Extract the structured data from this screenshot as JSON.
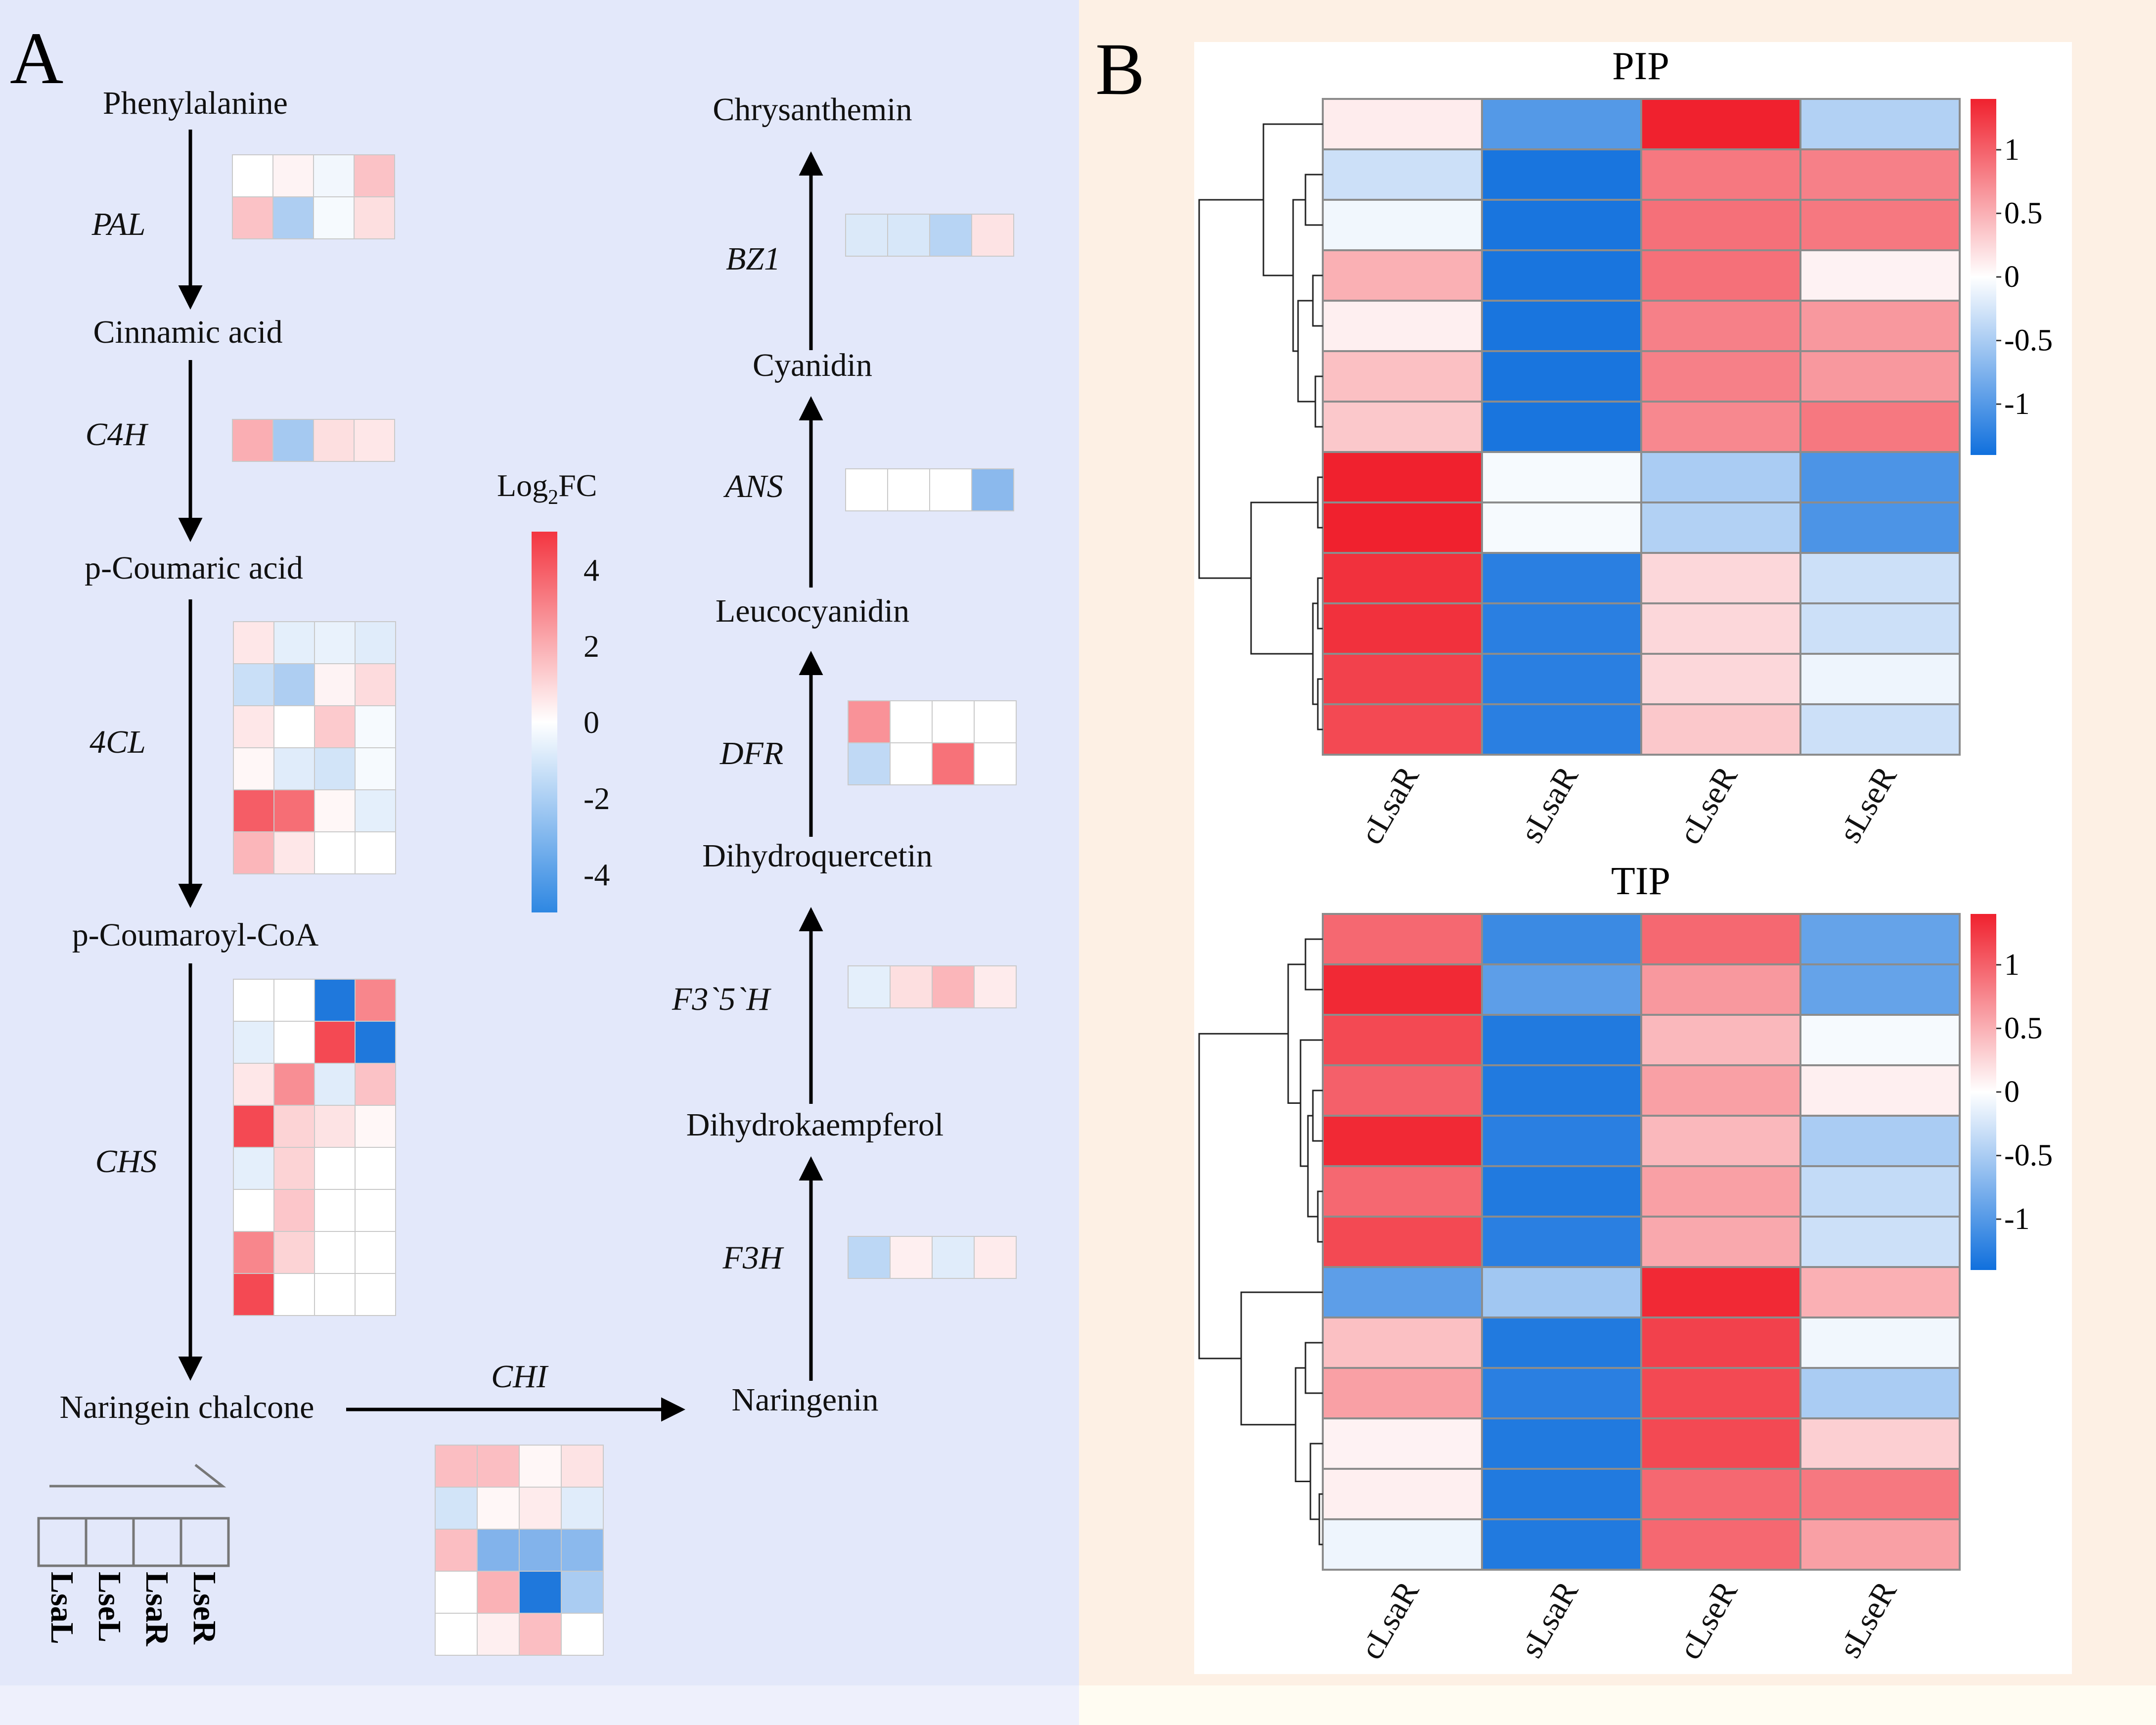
{
  "panels": {
    "a_letter": "A",
    "b_letter": "B"
  },
  "colors": {
    "panel_a_bg": "#E3E8FA",
    "panel_b_bg": "#FDF0E4",
    "high": "#F0212E",
    "mid": "#FFFFFF",
    "low": "#1070DD"
  },
  "pathway": {
    "compounds": {
      "phenylalanine": "Phenylalanine",
      "cinnamic_acid": "Cinnamic acid",
      "p_coumaric_acid": "p-Coumaric acid",
      "p_coumaroyl_coa": "p-Coumaroyl-CoA",
      "naringenin_chalcone": "Naringein chalcone",
      "naringenin": "Naringenin",
      "dihydrokaempferol": "Dihydrokaempferol",
      "dihydroquercetin": "Dihydroquercetin",
      "leucocyanidin": "Leucocyanidin",
      "cyanidin": "Cyanidin",
      "chrysanthemin": "Chrysanthemin"
    },
    "enzymes": {
      "PAL": "PAL",
      "C4H": "C4H",
      "fourCL": "4CL",
      "CHS": "CHS",
      "CHI": "CHI",
      "F3H": "F3H",
      "F35H": "F3`5`H",
      "DFR": "DFR",
      "ANS": "ANS",
      "BZ1": "BZ1"
    },
    "legend_columns": [
      "LsaL",
      "LseL",
      "LsaR",
      "LseR"
    ],
    "colorbar": {
      "title_main": "Log",
      "title_sub": "2",
      "title_tail": "FC",
      "ticks": [
        4,
        2,
        0,
        -2,
        -4
      ],
      "tick_labels": [
        "4",
        "2",
        "0",
        "-2",
        "-4"
      ],
      "range": [
        -5,
        5
      ]
    },
    "enzyme_values": {
      "PAL": [
        [
          0,
          0.3,
          -0.3,
          1.5
        ],
        [
          1.5,
          -1.8,
          -0.2,
          0.8
        ]
      ],
      "C4H": [
        [
          2,
          -2,
          0.8,
          0.6
        ]
      ],
      "fourCL": [
        [
          0.6,
          -0.6,
          -0.5,
          -0.7
        ],
        [
          -1.2,
          -1.8,
          0.3,
          0.9
        ],
        [
          0.6,
          0,
          1.3,
          -0.2
        ],
        [
          0.2,
          -0.7,
          -1.0,
          -0.2
        ],
        [
          4,
          3.6,
          0.2,
          -0.6
        ],
        [
          1.8,
          0.6,
          0,
          0
        ]
      ],
      "CHS": [
        [
          0,
          0,
          -5,
          3
        ],
        [
          -0.6,
          0,
          4.5,
          -5
        ],
        [
          0.6,
          2.8,
          -0.7,
          1.5
        ],
        [
          4.5,
          1.1,
          0.7,
          0.2
        ],
        [
          -0.6,
          1.1,
          0,
          0
        ],
        [
          0,
          1.4,
          0,
          0
        ],
        [
          3,
          1.1,
          0,
          0
        ],
        [
          4.5,
          0,
          0,
          0
        ]
      ],
      "CHI": [
        [
          1.6,
          1.6,
          0.2,
          0.7
        ],
        [
          -1,
          0.2,
          0.5,
          -0.7
        ],
        [
          1.6,
          -2.8,
          -2.8,
          -2.6
        ],
        [
          0,
          1.9,
          -5,
          -1.9
        ],
        [
          0,
          0.4,
          1.6,
          0
        ]
      ],
      "F3H": [
        [
          -1.5,
          0.4,
          -0.7,
          0.5
        ]
      ],
      "F35H": [
        [
          -0.6,
          0.8,
          1.8,
          0.5
        ]
      ],
      "DFR": [
        [
          2.7,
          0,
          0,
          0
        ],
        [
          -1.4,
          0,
          3.5,
          0
        ]
      ],
      "ANS": [
        [
          0,
          0,
          0,
          -2.6
        ]
      ],
      "BZ1": [
        [
          -0.8,
          -0.9,
          -1.6,
          0.7
        ]
      ]
    }
  },
  "heatmaps": [
    {
      "title": "PIP",
      "columns": [
        "cLsaR",
        "sLsaR",
        "cLseR",
        "sLseR"
      ],
      "colorbar": {
        "ticks": [
          1,
          0.5,
          0,
          -0.5,
          -1
        ],
        "tick_labels": [
          "1",
          "0.5",
          "0",
          "-0.5",
          "-1"
        ],
        "range": [
          -1.4,
          1.4
        ]
      },
      "values": [
        [
          0.12,
          -1.0,
          1.4,
          -0.45
        ],
        [
          -0.3,
          -1.35,
          0.85,
          0.8
        ],
        [
          -0.08,
          -1.35,
          0.9,
          0.85
        ],
        [
          0.5,
          -1.35,
          0.9,
          0.08
        ],
        [
          0.1,
          -1.35,
          0.8,
          0.65
        ],
        [
          0.4,
          -1.35,
          0.8,
          0.65
        ],
        [
          0.35,
          -1.35,
          0.75,
          0.85
        ],
        [
          1.4,
          -0.05,
          -0.5,
          -1.05
        ],
        [
          1.4,
          -0.05,
          -0.45,
          -1.05
        ],
        [
          1.3,
          -1.25,
          0.25,
          -0.3
        ],
        [
          1.3,
          -1.25,
          0.25,
          -0.3
        ],
        [
          1.2,
          -1.25,
          0.25,
          -0.1
        ],
        [
          1.15,
          -1.25,
          0.35,
          -0.3
        ]
      ]
    },
    {
      "title": "TIP",
      "columns": [
        "cLsaR",
        "sLsaR",
        "cLseR",
        "sLseR"
      ],
      "colorbar": {
        "ticks": [
          1,
          0.5,
          0,
          -0.5,
          -1
        ],
        "tick_labels": [
          "1",
          "0.5",
          "0",
          "-0.5",
          "-1"
        ],
        "range": [
          -1.4,
          1.4
        ]
      },
      "values": [
        [
          0.95,
          -1.15,
          0.95,
          -0.9
        ],
        [
          1.35,
          -0.95,
          0.65,
          -0.9
        ],
        [
          1.15,
          -1.3,
          0.45,
          -0.05
        ],
        [
          1.0,
          -1.3,
          0.6,
          0.1
        ],
        [
          1.35,
          -1.25,
          0.45,
          -0.5
        ],
        [
          0.95,
          -1.3,
          0.6,
          -0.35
        ],
        [
          1.15,
          -1.25,
          0.55,
          -0.3
        ],
        [
          -0.95,
          -0.55,
          1.35,
          0.5
        ],
        [
          0.4,
          -1.3,
          1.2,
          -0.08
        ],
        [
          0.6,
          -1.25,
          1.15,
          -0.5
        ],
        [
          0.08,
          -1.3,
          1.15,
          0.3
        ],
        [
          0.1,
          -1.3,
          0.95,
          0.85
        ],
        [
          -0.1,
          -1.3,
          0.95,
          0.6
        ]
      ]
    }
  ]
}
